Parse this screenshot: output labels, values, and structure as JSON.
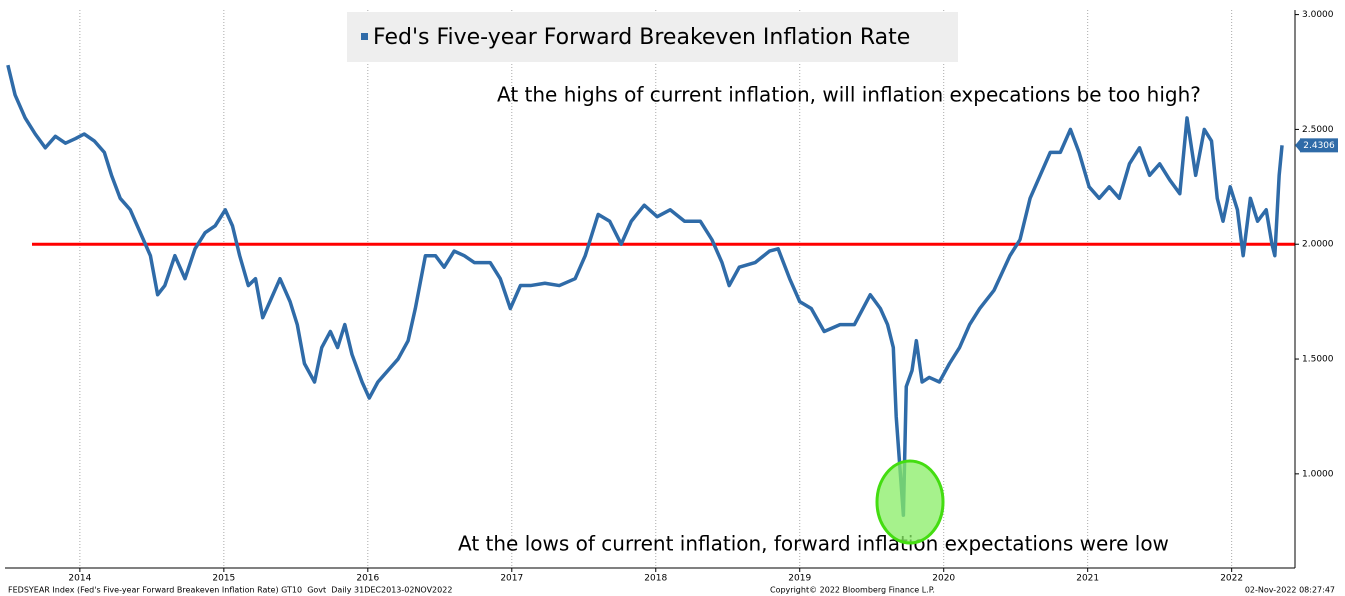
{
  "chart_data": {
    "type": "line",
    "xlim": [
      2013.98,
      2022.94
    ],
    "xticks": [
      {
        "value": 2014.5,
        "label": "2014"
      },
      {
        "value": 2015.5,
        "label": "2015"
      },
      {
        "value": 2016.5,
        "label": "2016"
      },
      {
        "value": 2017.5,
        "label": "2017"
      },
      {
        "value": 2018.5,
        "label": "2018"
      },
      {
        "value": 2019.5,
        "label": "2019"
      },
      {
        "value": 2020.5,
        "label": "2020"
      },
      {
        "value": 2021.5,
        "label": "2021"
      },
      {
        "value": 2022.5,
        "label": "2022"
      }
    ],
    "ylim": [
      0.59,
      3.02
    ],
    "yticks": [
      {
        "value": 1,
        "label": "1.0000"
      },
      {
        "value": 1.5,
        "label": "1.5000"
      },
      {
        "value": 2,
        "label": "2.0000"
      },
      {
        "value": 2.5,
        "label": "2.5000"
      },
      {
        "value": 3,
        "label": "3.0000"
      }
    ],
    "y_axis_side": "right",
    "grid": true,
    "x": [
      2014.0,
      2014.05,
      2014.12,
      2014.19,
      2014.26,
      2014.33,
      2014.4,
      2014.47,
      2014.53,
      2014.6,
      2014.67,
      2014.72,
      2014.78,
      2014.85,
      2014.92,
      2014.99,
      2015.04,
      2015.09,
      2015.16,
      2015.23,
      2015.3,
      2015.37,
      2015.44,
      2015.51,
      2015.56,
      2015.61,
      2015.67,
      2015.72,
      2015.77,
      2015.82,
      2015.89,
      2015.96,
      2016.01,
      2016.06,
      2016.13,
      2016.18,
      2016.24,
      2016.29,
      2016.34,
      2016.39,
      2016.46,
      2016.51,
      2016.57,
      2016.64,
      2016.71,
      2016.78,
      2016.83,
      2016.9,
      2016.97,
      2017.03,
      2017.1,
      2017.17,
      2017.24,
      2017.35,
      2017.42,
      2017.49,
      2017.56,
      2017.63,
      2017.73,
      2017.83,
      2017.94,
      2018.01,
      2018.1,
      2018.18,
      2018.26,
      2018.33,
      2018.42,
      2018.51,
      2018.6,
      2018.7,
      2018.81,
      2018.89,
      2018.96,
      2019.01,
      2019.08,
      2019.19,
      2019.29,
      2019.35,
      2019.43,
      2019.5,
      2019.58,
      2019.67,
      2019.78,
      2019.88,
      2019.99,
      2020.06,
      2020.11,
      2020.15,
      2020.17,
      2020.22,
      2020.24,
      2020.28,
      2020.31,
      2020.35,
      2020.4,
      2020.47,
      2020.54,
      2020.61,
      2020.68,
      2020.75,
      2020.85,
      2020.96,
      2021.03,
      2021.1,
      2021.17,
      2021.24,
      2021.31,
      2021.38,
      2021.44,
      2021.51,
      2021.58,
      2021.65,
      2021.72,
      2021.79,
      2021.86,
      2021.93,
      2022.0,
      2022.07,
      2022.14,
      2022.19,
      2022.25,
      2022.31,
      2022.36,
      2022.4,
      2022.44,
      2022.49,
      2022.54,
      2022.58,
      2022.63,
      2022.68,
      2022.74,
      2022.78,
      2022.8,
      2022.83,
      2022.85
    ],
    "series": [
      {
        "name": "Fed's Five-year Forward Breakeven Inflation Rate",
        "color": "#2f6ba8",
        "values": [
          2.78,
          2.65,
          2.55,
          2.48,
          2.42,
          2.47,
          2.44,
          2.46,
          2.48,
          2.45,
          2.4,
          2.3,
          2.2,
          2.15,
          2.05,
          1.95,
          1.78,
          1.82,
          1.95,
          1.85,
          1.98,
          2.05,
          2.08,
          2.15,
          2.08,
          1.95,
          1.82,
          1.85,
          1.68,
          1.75,
          1.85,
          1.75,
          1.65,
          1.48,
          1.4,
          1.55,
          1.62,
          1.55,
          1.65,
          1.52,
          1.4,
          1.33,
          1.4,
          1.45,
          1.5,
          1.58,
          1.72,
          1.95,
          1.95,
          1.9,
          1.97,
          1.95,
          1.92,
          1.92,
          1.85,
          1.72,
          1.82,
          1.82,
          1.83,
          1.82,
          1.85,
          1.95,
          2.13,
          2.1,
          2.0,
          2.1,
          2.17,
          2.12,
          2.15,
          2.1,
          2.1,
          2.02,
          1.92,
          1.82,
          1.9,
          1.92,
          1.97,
          1.98,
          1.85,
          1.75,
          1.72,
          1.62,
          1.65,
          1.65,
          1.78,
          1.72,
          1.65,
          1.55,
          1.25,
          0.82,
          1.38,
          1.45,
          1.58,
          1.4,
          1.42,
          1.4,
          1.48,
          1.55,
          1.65,
          1.72,
          1.8,
          1.95,
          2.02,
          2.2,
          2.3,
          2.4,
          2.4,
          2.5,
          2.4,
          2.25,
          2.2,
          2.25,
          2.2,
          2.35,
          2.42,
          2.3,
          2.35,
          2.28,
          2.22,
          2.55,
          2.3,
          2.5,
          2.45,
          2.2,
          2.1,
          2.25,
          2.15,
          1.95,
          2.2,
          2.1,
          2.15,
          2.0,
          1.95,
          2.3,
          2.4306
        ]
      }
    ],
    "reference_line": {
      "value": 2,
      "color": "#ff0000"
    },
    "annotations": [
      "At the highs of current inflation, will inflation expecations be too high?",
      "At the lows of current inflation, forward inflation expectations were low"
    ],
    "footer": {
      "left": "FEDSYEAR Index (Fed's Five-year Forward Breakeven Inflation Rate) GT10  Govt  Daily 31DEC2013-02NOV2022",
      "center": "Copyright© 2022 Bloomberg Finance L.P.",
      "right": "02-Nov-2022 08:27:47"
    }
  }
}
